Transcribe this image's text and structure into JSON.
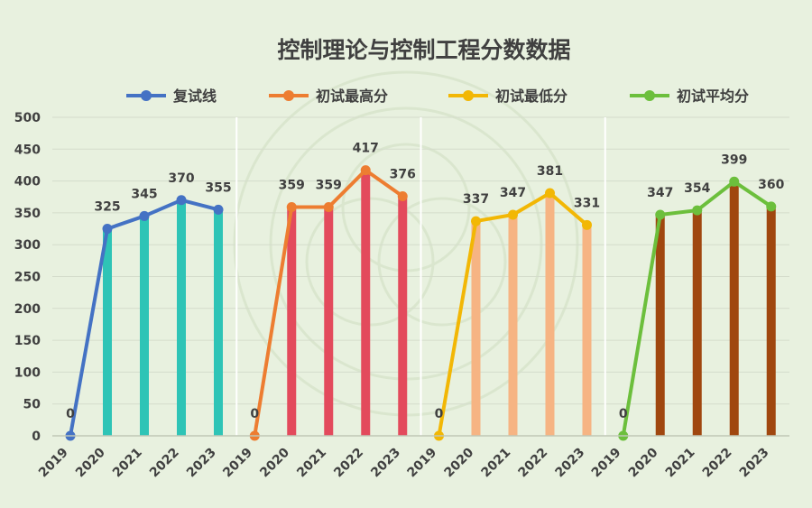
{
  "colors": {
    "background": "#e8f1df",
    "gridline": "#d4dccb",
    "divider": "#ffffff",
    "axis": "#bfc7b6",
    "text": "#404040"
  },
  "chart_data": {
    "type": "line",
    "title": "控制理论与控制工程分数数据",
    "ylim": [
      0,
      500
    ],
    "yticks": [
      0,
      50,
      100,
      150,
      200,
      250,
      300,
      350,
      400,
      450,
      500
    ],
    "legend_position": "top",
    "grid": true,
    "categories": [
      "2019",
      "2020",
      "2021",
      "2022",
      "2023"
    ],
    "series": [
      {
        "name": "复试线",
        "values": [
          0,
          325,
          345,
          370,
          355
        ],
        "line_color": "#4472c4",
        "bar_color": "#2ec4b6"
      },
      {
        "name": "初试最高分",
        "values": [
          0,
          359,
          359,
          417,
          376
        ],
        "line_color": "#ed7d31",
        "bar_color": "#e34a5c"
      },
      {
        "name": "初试最低分",
        "values": [
          0,
          337,
          347,
          381,
          331
        ],
        "line_color": "#f2b705",
        "bar_color": "#f6b483"
      },
      {
        "name": "初试平均分",
        "values": [
          0,
          347,
          354,
          399,
          360
        ],
        "line_color": "#6cbf3c",
        "bar_color": "#a0470f"
      }
    ]
  }
}
